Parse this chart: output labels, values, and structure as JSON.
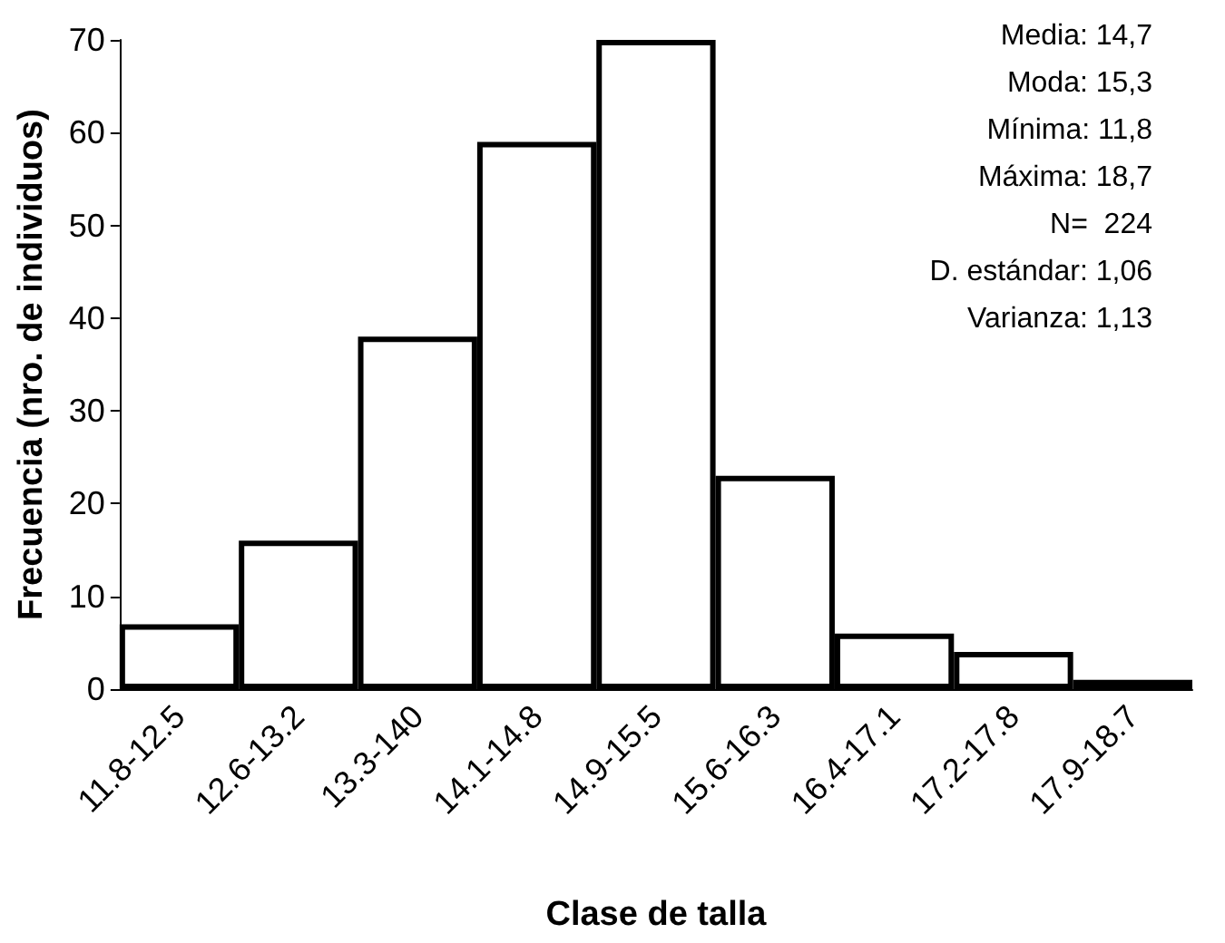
{
  "chart_data": {
    "type": "bar",
    "xlabel": "Clase de talla",
    "ylabel": "Frecuencia (nro. de individuos)",
    "categories": [
      "11.8-12.5",
      "12.6-13.2",
      "13.3-140",
      "14.1-14.8",
      "14.9-15.5",
      "15.6-16.3",
      "16.4-17.1",
      "17.2-17.8",
      "17.9-18.7"
    ],
    "values": [
      7,
      16,
      38,
      59,
      70,
      23,
      6,
      4,
      1
    ],
    "color": "#ffffff",
    "ylim": [
      0,
      70
    ],
    "yticks": [
      0,
      10,
      20,
      30,
      40,
      50,
      60,
      70
    ],
    "grid": false,
    "annotations": [
      "Media: 14,7",
      "Moda: 15,3",
      "Mínima: 11,8",
      "Máxima: 18,7",
      "N=  224",
      "D. estándar: 1,06",
      "Varianza: 1,13"
    ]
  }
}
